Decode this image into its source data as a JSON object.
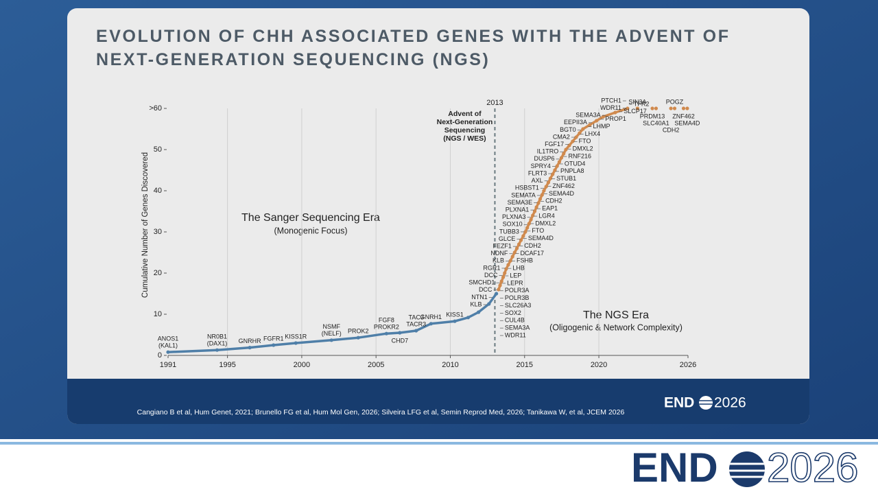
{
  "slide": {
    "title": "EVOLUTION OF CHH ASSOCIATED GENES WITH THE ADVENT OF NEXT-GENERATION SEQUENCING (NGS)",
    "citation": "Cangiano B et al, Hum Genet, 2021; Brunello FG et al, Hum Mol Gen, 2026; Silveira LFG et al, Semin Reprod Med, 2026; Tanikawa W, et al, JCEM 2026",
    "logo": {
      "left": "END",
      "right": "2026"
    }
  },
  "chart_data": {
    "type": "line",
    "ylabel": "Cumulative Number of Genes Discovered",
    "xlim": [
      1991,
      2026
    ],
    "xticks": [
      1991,
      1995,
      2000,
      2005,
      2010,
      2015,
      2020,
      2026
    ],
    "ylim": [
      0,
      60
    ],
    "yticks": [
      0,
      10,
      20,
      30,
      40,
      50,
      {
        "value": 60,
        "label": ">60"
      }
    ],
    "grid": "x",
    "vline": 2013,
    "vline_label": [
      "Advent of",
      "Next-Generation",
      "Sequencing",
      "(NGS / WES)"
    ],
    "eras": [
      {
        "title": "The Sanger Sequencing Era",
        "subtitle": "(Monogenic Focus)"
      },
      {
        "title": "The NGS Era",
        "subtitle": "(Oligogenic & Network Complexity)"
      }
    ],
    "series": [
      {
        "color": "#4f7fa8",
        "x": [
          1991,
          1994.3,
          1996.5,
          1998.1,
          1999.6,
          2002.0,
          2003.8,
          2005.7,
          2006.6,
          2007.7,
          2008.7,
          2010.3,
          2011.2,
          2011.9,
          2012.6,
          2013.1
        ],
        "values": [
          0.8,
          1.3,
          1.9,
          2.5,
          3.0,
          3.7,
          4.3,
          5.3,
          5.5,
          6.0,
          7.7,
          8.3,
          9.2,
          10.5,
          12.5,
          15
        ],
        "labels": [
          [
            "ANOS1",
            "(KAL1)"
          ],
          [
            "NR0B1",
            "(DAX1)"
          ],
          [
            "GNRHR"
          ],
          [
            "FGFR1"
          ],
          [
            "KISS1R"
          ],
          [
            "NSMF",
            "(NELF)"
          ],
          [
            "PROK2"
          ],
          [
            "FGF8",
            "PROKR2"
          ],
          null,
          [
            "TAC3",
            "TACR3"
          ],
          [
            "GNRH1"
          ],
          [
            "KISS1"
          ],
          null,
          null,
          null,
          null
        ],
        "labels_below": [
          null,
          null,
          null,
          null,
          null,
          null,
          null,
          null,
          [
            "CHD7"
          ],
          null,
          null,
          null,
          null,
          null,
          null,
          null
        ]
      },
      {
        "color": "#d08a4e",
        "x": [
          2013.25,
          2013.35,
          2013.45,
          2013.56,
          2013.66,
          2013.76,
          2013.9,
          2014.05,
          2014.19,
          2014.33,
          2014.48,
          2014.62,
          2014.76,
          2014.91,
          2015.05,
          2015.18,
          2015.3,
          2015.43,
          2015.55,
          2015.68,
          2015.8,
          2015.93,
          2016.05,
          2016.18,
          2016.3,
          2016.45,
          2016.6,
          2016.74,
          2016.89,
          2017.04,
          2017.19,
          2017.34,
          2017.48,
          2017.63,
          2017.78,
          2018.01,
          2018.24,
          2018.47,
          2018.7,
          2018.93,
          2019.39,
          2019.84,
          2020.3,
          2021.1,
          2021.93
        ],
        "values": [
          16,
          17,
          18,
          19,
          20,
          21,
          22,
          23,
          24,
          25,
          26,
          27,
          28,
          29,
          30,
          31,
          32,
          33,
          34,
          35,
          36,
          37,
          38,
          39,
          40,
          41,
          42,
          43,
          44,
          45,
          46,
          47,
          48,
          49,
          50,
          51,
          52,
          53,
          54,
          55,
          56,
          57,
          58,
          59,
          60
        ]
      },
      {
        "color": "#d08a4e",
        "line": false,
        "x": [
          2022.6,
          2023.6,
          2023.85,
          2024.85,
          2025.1,
          2025.7,
          2025.95
        ],
        "values": [
          60,
          60,
          60,
          60,
          60,
          60,
          60
        ],
        "labels": [
          [
            "SIN3A"
          ],
          null,
          null,
          null,
          [
            "POGZ"
          ],
          null,
          null
        ],
        "labels_below": [
          null,
          [
            "PRDM13"
          ],
          [
            "SLC40A1"
          ],
          [
            "CDH2"
          ],
          null,
          [
            "ZNF462"
          ],
          [
            "SEMA4D"
          ]
        ]
      }
    ],
    "left_labels": [
      "KLB",
      "NTN1",
      "DCC",
      "SMCHD1",
      "DCC",
      "RGR1",
      "KLB",
      "NDNF",
      "FEZF1",
      "GLCE",
      "TUBB3",
      "SOX10",
      "PLXNA3",
      "PLXNA1",
      "SEMA3E",
      "SEMATA",
      "HSBST1",
      "AXL",
      "FLRT3",
      "SPRY4",
      "DUSP6",
      "IL1TRO",
      "FGF17",
      "CMA2",
      "BGT0",
      "EEPII3A",
      "SEMA3A",
      "WDR11",
      "PTCH1"
    ],
    "right_labels": [
      "WDR11",
      "SEMA3A",
      "CUL4B",
      "SOX2",
      "SLC26A3",
      "POLR3B",
      "POLR3A",
      "LEPR",
      "LEP",
      "LHB",
      "FSHB",
      "DCAF17",
      "CDH2",
      "SEMA4D",
      "FTO",
      "DMXL2",
      "LGR4",
      "EAP1",
      "CDH2",
      "SEMA4D",
      "ZNF462",
      "STUB1",
      "PNPLA8",
      "OTUD4",
      "RNF216",
      "DMXL2",
      "FTO",
      "LHX4",
      "LHMP",
      "PROP1",
      "SLCP17",
      "TFR2"
    ]
  }
}
